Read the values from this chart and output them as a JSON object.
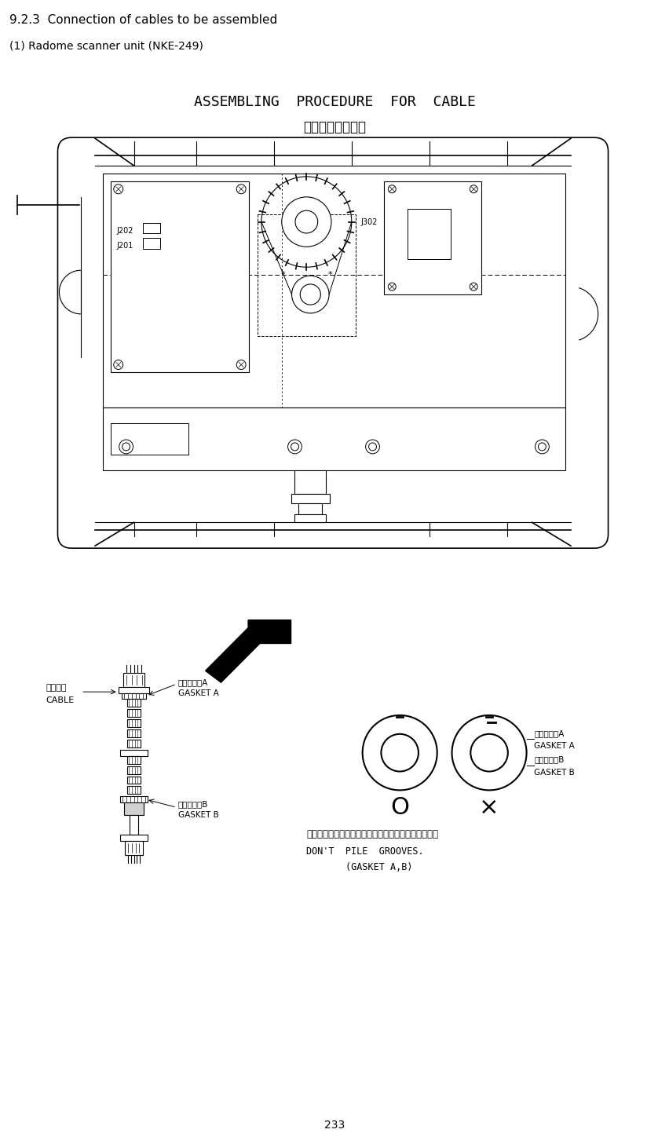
{
  "title_en": "ASSEMBLING  PROCEDURE  FOR  CABLE",
  "title_jp": "ケーブル装備要領",
  "header1": "9.2.3  Connection of cables to be assembled",
  "header2": "(1) Radome scanner unit (NKE-249)",
  "page_number": "233",
  "background_color": "#ffffff",
  "text_color": "#000000",
  "label_cable_jp": "ケーブル",
  "label_cable_en": "CABLE",
  "label_gasketA_jp": "ガスケットA",
  "label_gasketA_en": "GASKET A",
  "label_gasketB_jp": "ガスケットB",
  "label_gasketB_en": "GASKET B",
  "label_gasketA2_jp": "ガスケットA",
  "label_gasketA2_en": "GASKET A",
  "label_gasketB2_jp": "ガスケットB",
  "label_gasketB2_en": "GASKET B",
  "note_jp": "ガスケットの切り込みが重ならないようにすること。",
  "note_en1": "DON'T  PILE  GROOVES.",
  "note_en2": "(GASKET A,B)",
  "label_J201": "J201",
  "label_J202": "J202",
  "label_J302": "J302"
}
